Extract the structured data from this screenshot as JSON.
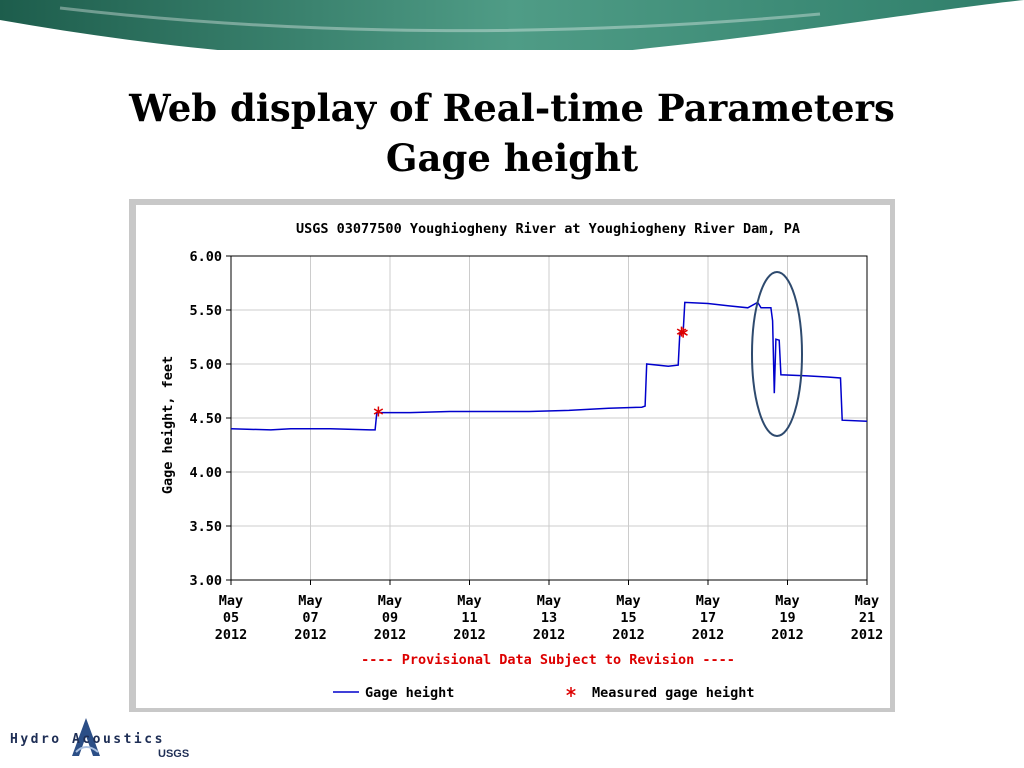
{
  "slide": {
    "title_line1": "Web display of Real-time Parameters",
    "title_line2": "Gage height"
  },
  "logo": {
    "text": "Hydro Acoustics",
    "subtext": "USGS"
  },
  "colors": {
    "series": "#0000cc",
    "measured": "#dd0000",
    "note": "#dd0000",
    "ellipse": "#2e4a6e",
    "grid": "#cccccc"
  },
  "chart_data": {
    "type": "line",
    "title": "USGS 03077500 Youghiogheny River at Youghiogheny River Dam, PA",
    "ylabel": "Gage height, feet",
    "xlabel": "",
    "ylim": [
      3.0,
      6.0
    ],
    "xlim": [
      "2012-05-05",
      "2012-05-21"
    ],
    "y_ticks": [
      "3.00",
      "3.50",
      "4.00",
      "4.50",
      "5.00",
      "5.50",
      "6.00"
    ],
    "x_ticks": [
      {
        "date": "2012-05-05",
        "label": [
          "May",
          "05",
          "2012"
        ]
      },
      {
        "date": "2012-05-07",
        "label": [
          "May",
          "07",
          "2012"
        ]
      },
      {
        "date": "2012-05-09",
        "label": [
          "May",
          "09",
          "2012"
        ]
      },
      {
        "date": "2012-05-11",
        "label": [
          "May",
          "11",
          "2012"
        ]
      },
      {
        "date": "2012-05-13",
        "label": [
          "May",
          "13",
          "2012"
        ]
      },
      {
        "date": "2012-05-15",
        "label": [
          "May",
          "15",
          "2012"
        ]
      },
      {
        "date": "2012-05-17",
        "label": [
          "May",
          "17",
          "2012"
        ]
      },
      {
        "date": "2012-05-19",
        "label": [
          "May",
          "19",
          "2012"
        ]
      },
      {
        "date": "2012-05-21",
        "label": [
          "May",
          "21",
          "2012"
        ]
      }
    ],
    "grid": true,
    "legend_position": "bottom",
    "note": "---- Provisional Data Subject to Revision ----",
    "series": [
      {
        "name": "Gage height",
        "type": "line",
        "points": [
          [
            "2012-05-05 00:00",
            4.4
          ],
          [
            "2012-05-06 00:00",
            4.39
          ],
          [
            "2012-05-06 12:00",
            4.4
          ],
          [
            "2012-05-07 12:00",
            4.4
          ],
          [
            "2012-05-08 12:00",
            4.39
          ],
          [
            "2012-05-08 15:00",
            4.39
          ],
          [
            "2012-05-08 16:00",
            4.55
          ],
          [
            "2012-05-09 12:00",
            4.55
          ],
          [
            "2012-05-10 12:00",
            4.56
          ],
          [
            "2012-05-11 12:00",
            4.56
          ],
          [
            "2012-05-12 12:00",
            4.56
          ],
          [
            "2012-05-13 12:00",
            4.57
          ],
          [
            "2012-05-14 12:00",
            4.59
          ],
          [
            "2012-05-15 08:00",
            4.6
          ],
          [
            "2012-05-15 10:00",
            4.61
          ],
          [
            "2012-05-15 11:00",
            5.0
          ],
          [
            "2012-05-16 00:00",
            4.98
          ],
          [
            "2012-05-16 06:00",
            4.99
          ],
          [
            "2012-05-16 07:00",
            5.28
          ],
          [
            "2012-05-16 09:00",
            5.3
          ],
          [
            "2012-05-16 10:00",
            5.57
          ],
          [
            "2012-05-17 00:00",
            5.56
          ],
          [
            "2012-05-17 12:00",
            5.54
          ],
          [
            "2012-05-18 00:00",
            5.52
          ],
          [
            "2012-05-18 06:00",
            5.57
          ],
          [
            "2012-05-18 08:00",
            5.52
          ],
          [
            "2012-05-18 14:00",
            5.52
          ],
          [
            "2012-05-18 15:00",
            5.4
          ],
          [
            "2012-05-18 16:00",
            4.73
          ],
          [
            "2012-05-18 17:00",
            5.23
          ],
          [
            "2012-05-18 19:00",
            5.22
          ],
          [
            "2012-05-18 20:00",
            4.9
          ],
          [
            "2012-05-19 12:00",
            4.89
          ],
          [
            "2012-05-20 00:00",
            4.88
          ],
          [
            "2012-05-20 08:00",
            4.87
          ],
          [
            "2012-05-20 09:00",
            4.48
          ],
          [
            "2012-05-21 00:00",
            4.47
          ]
        ]
      },
      {
        "name": "Measured gage height",
        "type": "marker",
        "points": [
          [
            "2012-05-08 17:00",
            4.56
          ],
          [
            "2012-05-16 08:00",
            5.3
          ],
          [
            "2012-05-16 09:00",
            5.29
          ]
        ]
      }
    ]
  }
}
